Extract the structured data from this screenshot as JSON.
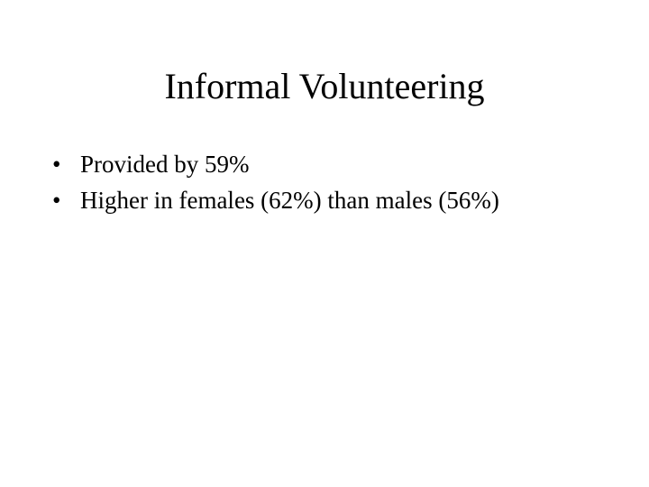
{
  "slide": {
    "title": "Informal Volunteering",
    "bullets": [
      "Provided by 59%",
      "Higher in females (62%) than males (56%)"
    ]
  },
  "icons": {
    "bullet": "bullet-dot-icon"
  }
}
